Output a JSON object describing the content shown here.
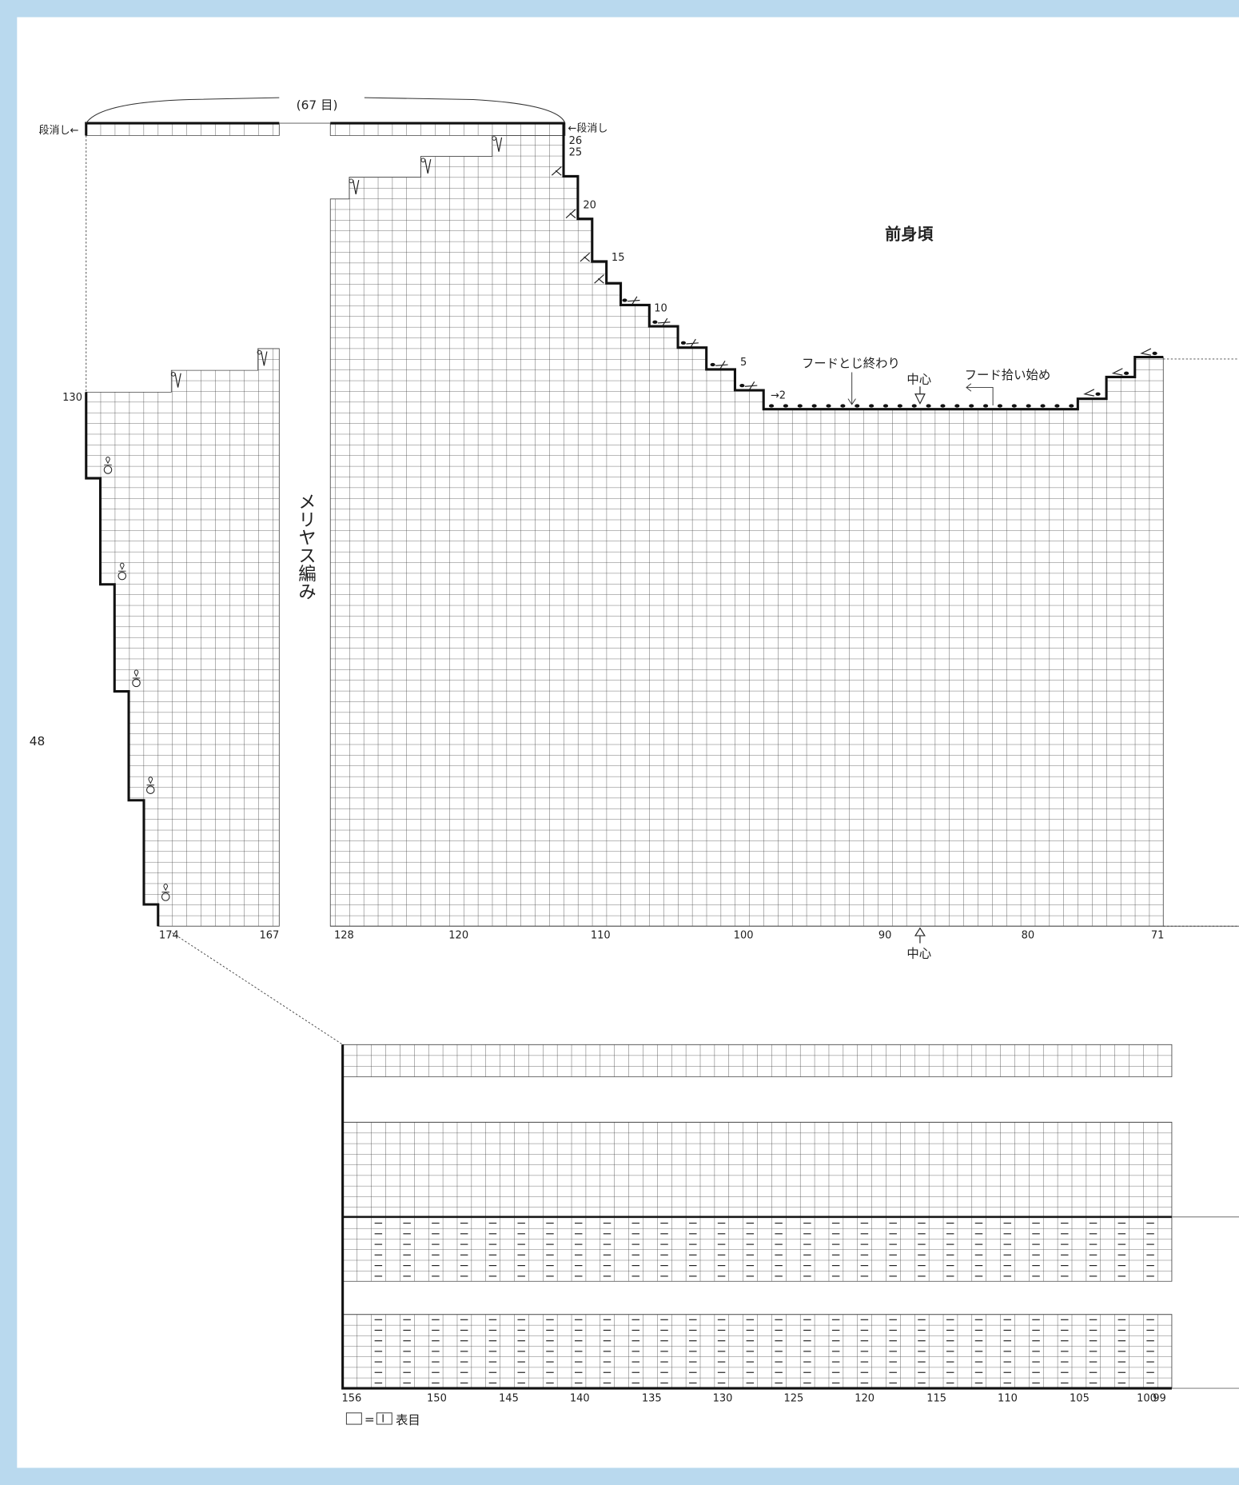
{
  "page_number": "48",
  "title": "前身頃",
  "stitch_count_label": "(67 目)",
  "short_row_left": "段消し←",
  "short_row_right": "←段消し",
  "pattern_label": "メリヤス編み",
  "row_numbers": {
    "r26": "26",
    "r25": "25",
    "r20": "20",
    "r15": "15",
    "r10": "10",
    "r5": "5",
    "r2": "→2",
    "r130": "130"
  },
  "hood_end_label": "フードとじ終わり",
  "hood_start_label": "フード拾い始め",
  "center_top_label": "中心",
  "center_bottom_label": "中心",
  "top_chart_columns": [
    "174",
    "167",
    "128",
    "120",
    "110",
    "100",
    "90",
    "80",
    "71"
  ],
  "bottom_chart_columns": [
    "156",
    "150",
    "145",
    "140",
    "135",
    "130",
    "125",
    "120",
    "115",
    "110",
    "105",
    "100",
    "99"
  ],
  "legend": {
    "equals": "=",
    "symbol": "I",
    "text": "表目"
  },
  "colors": {
    "background": "#b9d9ee",
    "page": "#ffffff",
    "line": "#222222",
    "grid": "#555555"
  }
}
